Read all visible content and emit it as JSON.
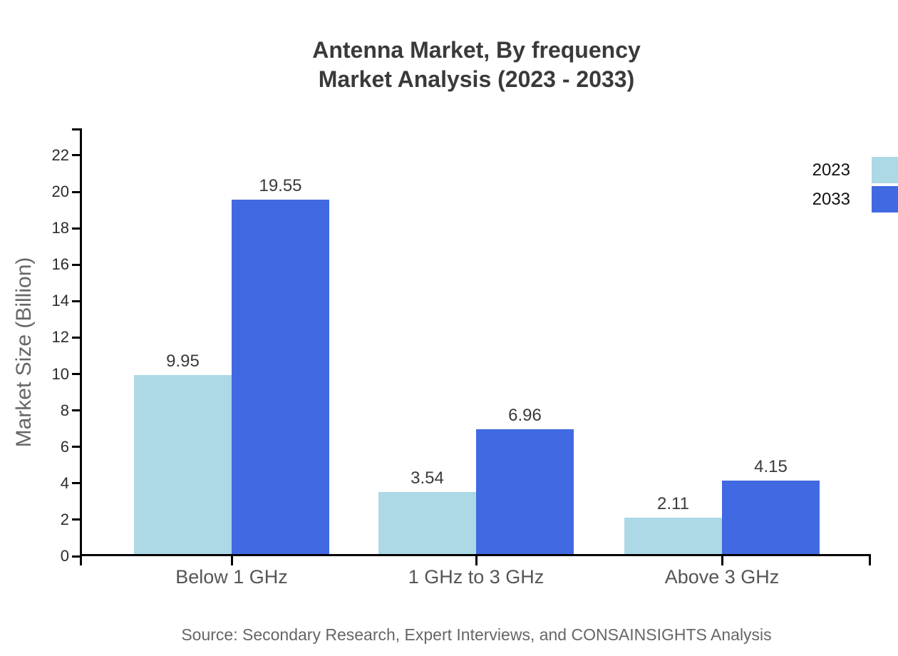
{
  "title": {
    "line1": "Antenna Market, By frequency",
    "line2": "Market Analysis (2023 - 2033)"
  },
  "chart_data": {
    "type": "bar",
    "title": "Antenna Market, By frequency Market Analysis (2023 - 2033)",
    "categories": [
      "Below 1 GHz",
      "1 GHz to 3 GHz",
      "Above 3 GHz"
    ],
    "series": [
      {
        "name": "2023",
        "color": "#ADD8E6",
        "values": [
          9.95,
          3.54,
          2.11
        ]
      },
      {
        "name": "2033",
        "color": "#4169E1",
        "values": [
          19.55,
          6.96,
          4.15
        ]
      }
    ],
    "xlabel": "",
    "ylabel": "Market Size (Billion)",
    "ylim": [
      0,
      23.5
    ],
    "yticks": [
      0,
      2,
      4,
      6,
      8,
      10,
      12,
      14,
      16,
      18,
      20,
      22
    ],
    "grid": false,
    "legend_position": "top-right",
    "value_labels_shown": true
  },
  "source": "Source: Secondary Research, Expert Interviews, and CONSAINSIGHTS Analysis",
  "colors": {
    "series_2023": "#ADD8E6",
    "series_2033": "#4169E1",
    "axis": "#000000",
    "title_text": "#3a3a3a",
    "tick_text": "#2b2b2b",
    "value_text": "#3a3a3a",
    "category_text": "#555555",
    "muted_text": "#666666",
    "background": "#ffffff"
  }
}
